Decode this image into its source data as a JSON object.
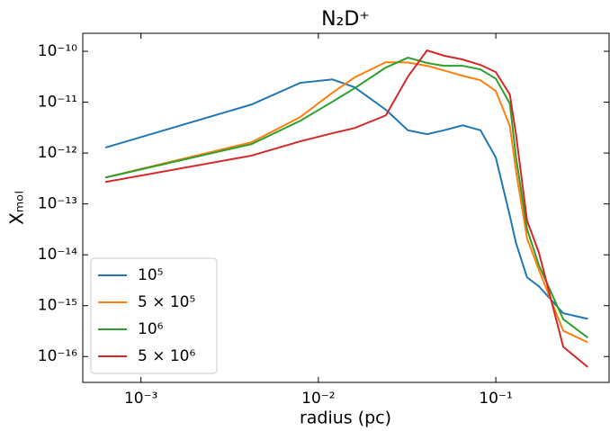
{
  "chart_data": {
    "type": "line",
    "title": "N₂D⁺",
    "x_label": "radius (pc)",
    "y_label": "Xₘₒₗ",
    "xscale": "log",
    "yscale": "log",
    "xlim": [
      0.00047,
      0.435
    ],
    "ylim": [
      3.1e-17,
      2.26e-10
    ],
    "xticks": [
      {
        "value": 0.001,
        "label": "10⁻³"
      },
      {
        "value": 0.01,
        "label": "10⁻²"
      },
      {
        "value": 0.1,
        "label": "10⁻¹"
      }
    ],
    "yticks": [
      {
        "value": 1e-16,
        "label": "10⁻¹⁶"
      },
      {
        "value": 1e-15,
        "label": "10⁻¹⁵"
      },
      {
        "value": 1e-14,
        "label": "10⁻¹⁴"
      },
      {
        "value": 1e-13,
        "label": "10⁻¹³"
      },
      {
        "value": 1e-12,
        "label": "10⁻¹²"
      },
      {
        "value": 1e-11,
        "label": "10⁻¹¹"
      },
      {
        "value": 1e-10,
        "label": "10⁻¹⁰"
      }
    ],
    "legend": "lower left",
    "x": [
      0.00063,
      0.0042,
      0.0079,
      0.012,
      0.016,
      0.024,
      0.032,
      0.041,
      0.051,
      0.065,
      0.082,
      0.1,
      0.12,
      0.13,
      0.15,
      0.175,
      0.24,
      0.33
    ],
    "series": [
      {
        "name": "10⁵",
        "color": "#1f77b4",
        "values": [
          1.28e-12,
          9e-12,
          2.4e-11,
          2.8e-11,
          1.96e-11,
          7.1e-12,
          2.8e-12,
          2.35e-12,
          2.8e-12,
          3.5e-12,
          2.8e-12,
          8.2e-13,
          5.8e-14,
          1.7e-14,
          3.6e-15,
          2.4e-15,
          7.1e-16,
          5.5e-16
        ]
      },
      {
        "name": "5 × 10⁵",
        "color": "#ff7f0e",
        "values": [
          3.3e-13,
          1.63e-12,
          5.1e-12,
          1.53e-11,
          3.07e-11,
          6.1e-11,
          6e-11,
          5.2e-11,
          4.2e-11,
          3.3e-11,
          2.7e-11,
          1.66e-11,
          3.4e-12,
          4.4e-13,
          2.1e-14,
          5e-15,
          3.2e-16,
          1.9e-16
        ]
      },
      {
        "name": "10⁶",
        "color": "#2ca02c",
        "values": [
          3.3e-13,
          1.5e-12,
          4.3e-12,
          1.02e-11,
          1.88e-11,
          4.8e-11,
          7.5e-11,
          5.9e-11,
          5.2e-11,
          5.2e-11,
          4.4e-11,
          2.9e-11,
          9.4e-12,
          8.2e-13,
          3.2e-14,
          6.2e-15,
          5.4e-16,
          2.35e-16
        ]
      },
      {
        "name": "5 × 10⁶",
        "color": "#d62728",
        "values": [
          2.7e-13,
          8.9e-13,
          1.7e-12,
          2.45e-12,
          3.1e-12,
          5.5e-12,
          3.2e-11,
          1.04e-10,
          8.2e-11,
          6.9e-11,
          5.4e-11,
          3.9e-11,
          1.41e-11,
          2.3e-12,
          4.7e-14,
          1.1e-14,
          1.55e-16,
          6.2e-17
        ]
      }
    ]
  }
}
